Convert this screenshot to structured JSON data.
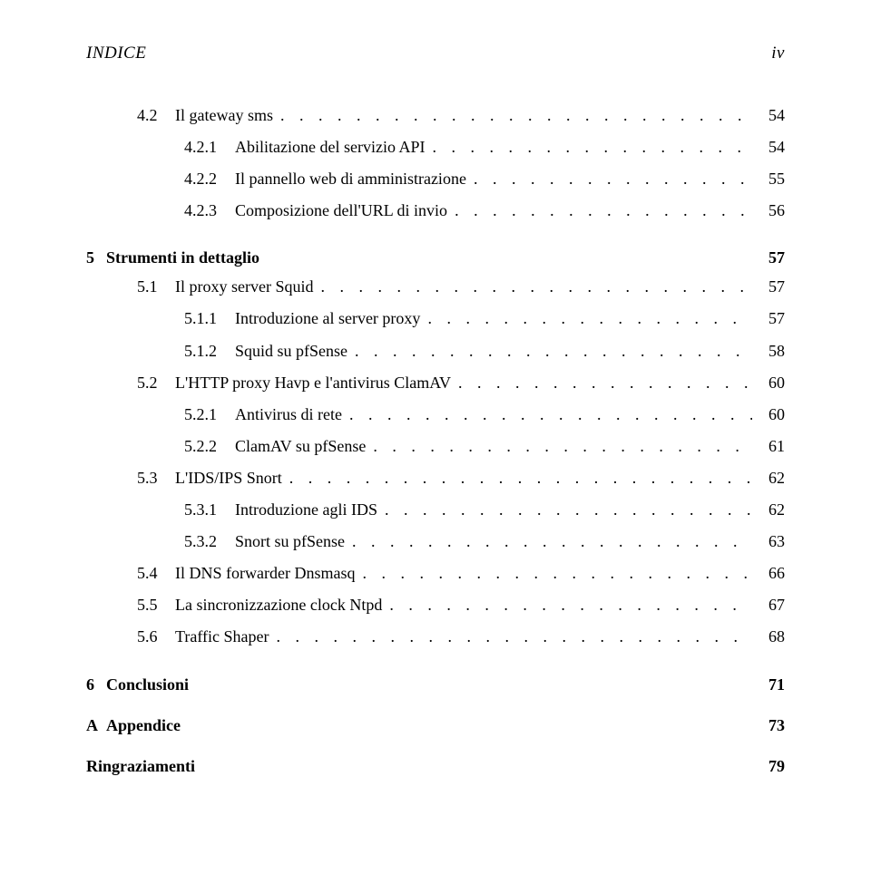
{
  "header": {
    "left": "INDICE",
    "right": "iv"
  },
  "pre": [
    {
      "level": 1,
      "num": "4.2",
      "title": "Il gateway sms",
      "page": "54"
    },
    {
      "level": 2,
      "num": "4.2.1",
      "title": "Abilitazione del servizio API",
      "page": "54"
    },
    {
      "level": 2,
      "num": "4.2.2",
      "title": "Il pannello web di amministrazione",
      "page": "55"
    },
    {
      "level": 2,
      "num": "4.2.3",
      "title": "Composizione dell'URL di invio",
      "page": "56"
    }
  ],
  "chapter5": {
    "num": "5",
    "title": "Strumenti in dettaglio",
    "page": "57"
  },
  "ch5": [
    {
      "level": 1,
      "num": "5.1",
      "title": "Il proxy server Squid",
      "page": "57"
    },
    {
      "level": 2,
      "num": "5.1.1",
      "title": "Introduzione al server proxy",
      "page": "57"
    },
    {
      "level": 2,
      "num": "5.1.2",
      "title": "Squid su pfSense",
      "page": "58"
    },
    {
      "level": 1,
      "num": "5.2",
      "title": "L'HTTP proxy Havp e l'antivirus ClamAV",
      "page": "60"
    },
    {
      "level": 2,
      "num": "5.2.1",
      "title": "Antivirus di rete",
      "page": "60"
    },
    {
      "level": 2,
      "num": "5.2.2",
      "title": "ClamAV su pfSense",
      "page": "61"
    },
    {
      "level": 1,
      "num": "5.3",
      "title": "L'IDS/IPS Snort",
      "page": "62"
    },
    {
      "level": 2,
      "num": "5.3.1",
      "title": "Introduzione agli IDS",
      "page": "62"
    },
    {
      "level": 2,
      "num": "5.3.2",
      "title": "Snort su pfSense",
      "page": "63"
    },
    {
      "level": 1,
      "num": "5.4",
      "title": "Il DNS forwarder Dnsmasq",
      "page": "66"
    },
    {
      "level": 1,
      "num": "5.5",
      "title": "La sincronizzazione clock Ntpd",
      "page": "67"
    },
    {
      "level": 1,
      "num": "5.6",
      "title": "Traffic Shaper",
      "page": "68"
    }
  ],
  "chapter6": {
    "num": "6",
    "title": "Conclusioni",
    "page": "71"
  },
  "appendix": {
    "num": "A",
    "title": "Appendice",
    "page": "73"
  },
  "ring": {
    "title": "Ringraziamenti",
    "page": "79"
  }
}
